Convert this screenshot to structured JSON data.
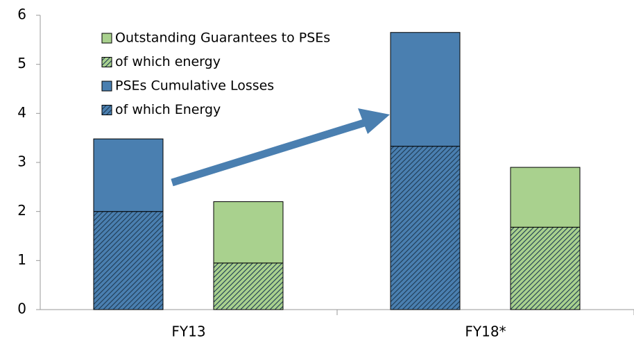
{
  "chart_data": {
    "type": "bar",
    "categories": [
      "FY13",
      "FY18*"
    ],
    "stacks": [
      [
        {
          "name": "of which Energy",
          "color": "#4a7fb0",
          "hatch": true,
          "values": [
            2.0,
            3.33
          ]
        },
        {
          "name": "PSEs Cumulative Losses",
          "color": "#4a7fb0",
          "hatch": false,
          "values": [
            1.48,
            2.32
          ]
        }
      ],
      [
        {
          "name": "of which energy",
          "color": "#a9d18e",
          "hatch": true,
          "values": [
            0.95,
            1.68
          ]
        },
        {
          "name": "Outstanding Guarantees to PSEs",
          "color": "#a9d18e",
          "hatch": false,
          "values": [
            1.25,
            1.22
          ]
        }
      ]
    ],
    "ylim": [
      0,
      6
    ],
    "yticks": [
      0,
      1,
      2,
      3,
      4,
      5,
      6
    ],
    "grid": false
  }
}
